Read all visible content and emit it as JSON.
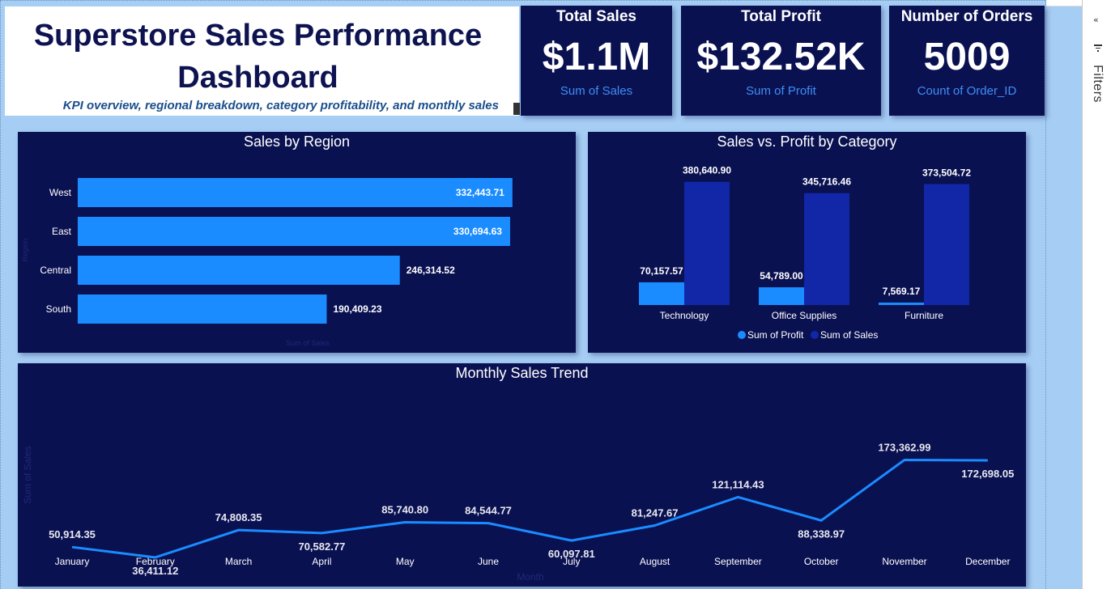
{
  "header": {
    "title_line1": "Superstore Sales Performance",
    "title_line2": "Dashboard",
    "subtitle": "KPI overview, regional breakdown, category profitability, and monthly sales"
  },
  "kpis": {
    "total_sales": {
      "title": "Total Sales",
      "value": "$1.1M",
      "label": "Sum of Sales"
    },
    "total_profit": {
      "title": "Total Profit",
      "value": "$132.52K",
      "label": "Sum of Profit"
    },
    "orders": {
      "title": "Number of Orders",
      "value": "5009",
      "label": "Count of Order_ID"
    }
  },
  "filters_pane": {
    "label": "Filters",
    "collapse_icon": "chevron-double-left-icon",
    "filter_icon": "filter-icon"
  },
  "colors": {
    "bar": "#1a8cff",
    "sales_bar": "#1226a8",
    "card": "#0a1151",
    "line": "#1a8cff"
  },
  "chart_data": [
    {
      "type": "bar",
      "orientation": "horizontal",
      "title": "Sales by Region",
      "ylabel": "Region",
      "xlabel": "Sum of Sales",
      "categories": [
        "West",
        "East",
        "Central",
        "South"
      ],
      "values": [
        332443.71,
        330694.63,
        246314.52,
        190409.23
      ],
      "value_labels": [
        "332,443.71",
        "330,694.63",
        "246,314.52",
        "190,409.23"
      ],
      "xlim": [
        0,
        340000
      ]
    },
    {
      "type": "bar",
      "title": "Sales vs. Profit by Category",
      "categories": [
        "Technology",
        "Office Supplies",
        "Furniture"
      ],
      "series": [
        {
          "name": "Sum of Profit",
          "values": [
            70157.57,
            54789.0,
            7569.17
          ],
          "labels": [
            "70,157.57",
            "54,789.00",
            "7,569.17"
          ]
        },
        {
          "name": "Sum of Sales",
          "values": [
            380640.9,
            345716.46,
            373504.72
          ],
          "labels": [
            "380,640.90",
            "345,716.46",
            "373,504.72"
          ]
        }
      ],
      "legend": "bottom",
      "ylim": [
        0,
        400000
      ]
    },
    {
      "type": "line",
      "title": "Monthly Sales Trend",
      "xlabel": "Month",
      "ylabel": "Sum of Sales",
      "x": [
        "January",
        "February",
        "March",
        "April",
        "May",
        "June",
        "July",
        "August",
        "September",
        "October",
        "November",
        "December"
      ],
      "values": [
        50914.35,
        36411.12,
        74808.35,
        70582.77,
        85740.8,
        84544.77,
        60097.81,
        81247.67,
        121114.43,
        88338.97,
        173362.99,
        172698.05
      ],
      "value_labels": [
        "50,914.35",
        "36,411.12",
        "74,808.35",
        "70,582.77",
        "85,740.80",
        "84,544.77",
        "60,097.81",
        "81,247.67",
        "121,114.43",
        "88,338.97",
        "173,362.99",
        "172,698.05"
      ],
      "label_position": [
        "above",
        "below",
        "above",
        "below",
        "above",
        "above",
        "below",
        "above",
        "above",
        "below",
        "above",
        "below"
      ],
      "ylim": [
        0,
        180000
      ]
    }
  ]
}
